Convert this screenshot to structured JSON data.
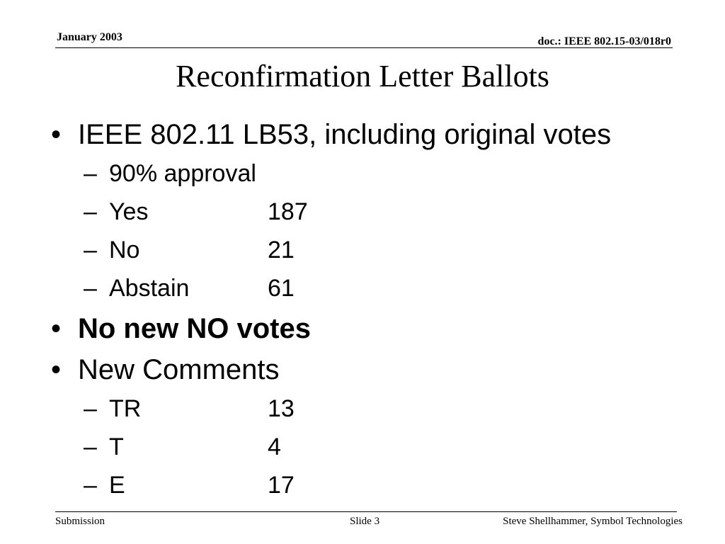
{
  "header": {
    "date": "January 2003",
    "doc_id": "doc.: IEEE 802.15-03/018r0"
  },
  "slide": {
    "title": "Reconfirmation Letter Ballots",
    "bullets": [
      {
        "text": "IEEE 802.11 LB53, including original votes",
        "bold": false,
        "subitems": [
          {
            "label": "90% approval",
            "value": ""
          },
          {
            "label": "Yes",
            "value": "187"
          },
          {
            "label": "No",
            "value": "21"
          },
          {
            "label": "Abstain",
            "value": "61"
          }
        ]
      },
      {
        "text": "No new NO votes",
        "bold": true,
        "subitems": []
      },
      {
        "text": "New Comments",
        "bold": false,
        "subitems": [
          {
            "label": "TR",
            "value": "13"
          },
          {
            "label": "T",
            "value": "4"
          },
          {
            "label": "E",
            "value": "17"
          }
        ]
      }
    ],
    "bullet_glyph": "•",
    "dash_glyph": "–"
  },
  "footer": {
    "left": "Submission",
    "center": "Slide 3",
    "right": "Steve Shellhammer, Symbol Technologies"
  }
}
